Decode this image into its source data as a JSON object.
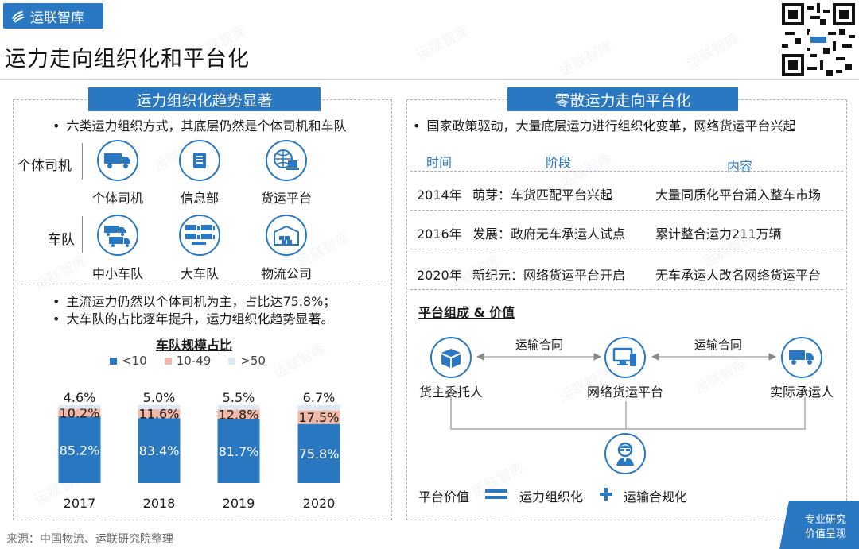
{
  "brand": {
    "name": "运联智库"
  },
  "page": {
    "title": "运力走向组织化和平台化"
  },
  "watermark_text": "运联智库",
  "left_panel": {
    "header": "运力组织化趋势显著",
    "bullet_top": "六类运力组织方式，其底层仍然是个体司机和车队",
    "rows": [
      {
        "label": "个体司机",
        "items": [
          {
            "icon": "single-truck-icon",
            "label": "个体司机"
          },
          {
            "icon": "phone-info-icon",
            "label": "信息部"
          },
          {
            "icon": "globe-laptop-icon",
            "label": "货运平台"
          }
        ]
      },
      {
        "label": "车队",
        "items": [
          {
            "icon": "two-trucks-icon",
            "label": "中小车队"
          },
          {
            "icon": "truck-fleet-icon",
            "label": "大车队"
          },
          {
            "icon": "warehouse-icon",
            "label": "物流公司"
          }
        ]
      }
    ],
    "bullets_bottom": [
      "主流运力仍然以个体司机为主，占比达75.8%；",
      "大车队的占比逐年提升，运力组织化趋势显著。"
    ]
  },
  "chart_data": {
    "type": "bar",
    "stacked": true,
    "title": "车队规模占比",
    "legend_position": "top",
    "categories": [
      "2017",
      "2018",
      "2019",
      "2020"
    ],
    "series": [
      {
        "name": "<10",
        "color": "#2a78c2",
        "values": [
          85.2,
          83.4,
          81.7,
          75.8
        ],
        "labels": [
          "85.2%",
          "83.4%",
          "81.7%",
          "75.8%"
        ]
      },
      {
        "name": "10-49",
        "color": "#f2b8a8",
        "values": [
          10.2,
          11.6,
          12.8,
          17.5
        ],
        "labels": [
          "10.2%",
          "11.6%",
          "12.8%",
          "17.5%"
        ]
      },
      {
        "name": ">50",
        "color": "#dde8f5",
        "values": [
          4.6,
          5.0,
          5.5,
          6.7
        ],
        "labels": [
          "4.6%",
          "5.0%",
          "5.5%",
          "6.7%"
        ]
      }
    ],
    "ylim": [
      0,
      100
    ],
    "grid": false
  },
  "right_panel": {
    "header": "零散运力走向平台化",
    "bullet": "国家政策驱动，大量底层运力进行组织化变革，网络货运平台兴起",
    "timeline": {
      "headers": [
        "时间",
        "阶段",
        "内容"
      ],
      "rows": [
        [
          "2014年",
          "萌芽：车货匹配平台兴起",
          "大量同质化平台涌入整车市场"
        ],
        [
          "2016年",
          "发展：政府无车承运人试点",
          "累计整合运力211万辆"
        ],
        [
          "2020年",
          "新纪元：网络货运平台开启",
          "无车承运人改名网络货运平台"
        ]
      ]
    },
    "platform": {
      "title": "平台组成 & 价值",
      "nodes": [
        {
          "icon": "box-icon",
          "label": "货主委托人"
        },
        {
          "icon": "devices-icon",
          "label": "网络货运平台"
        },
        {
          "icon": "truck-icon",
          "label": "实际承运人"
        }
      ],
      "contract_label": "运输合同",
      "center_icon": "person-icon",
      "value_label": "平台价值",
      "value_a": "运力组织化",
      "value_b": "运输合规化"
    }
  },
  "footer": {
    "source": "来源：中国物流、运联研究院整理",
    "badge_line1": "专业研究",
    "badge_line2": "价值呈现"
  },
  "colors": {
    "accent": "#2a78c2",
    "pink": "#f2b8a8",
    "light": "#dde8f5"
  }
}
